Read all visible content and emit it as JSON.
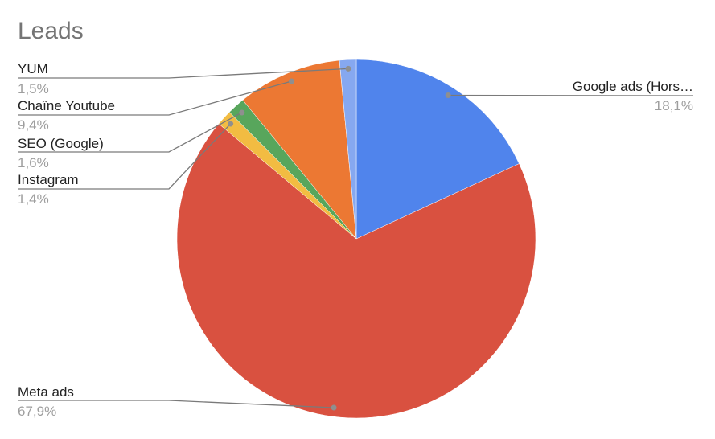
{
  "chart_data": {
    "type": "pie",
    "title": "Leads",
    "start": "top",
    "direction": "clockwise",
    "slices": [
      {
        "label": "Google ads (Hors…",
        "value": 18.1,
        "display": "18,1%",
        "color": "#5084ec"
      },
      {
        "label": "Meta ads",
        "value": 67.9,
        "display": "67,9%",
        "color": "#d95140"
      },
      {
        "label": "Instagram",
        "value": 1.4,
        "display": "1,4%",
        "color": "#f2bc42"
      },
      {
        "label": "SEO (Google)",
        "value": 1.6,
        "display": "1,6%",
        "color": "#58a65c"
      },
      {
        "label": "Chaîne Youtube",
        "value": 9.4,
        "display": "9,4%",
        "color": "#ec7833"
      },
      {
        "label": "YUM",
        "value": 1.5,
        "display": "1,5%",
        "color": "#86a8f0"
      }
    ],
    "legend": "labeled-lines"
  }
}
